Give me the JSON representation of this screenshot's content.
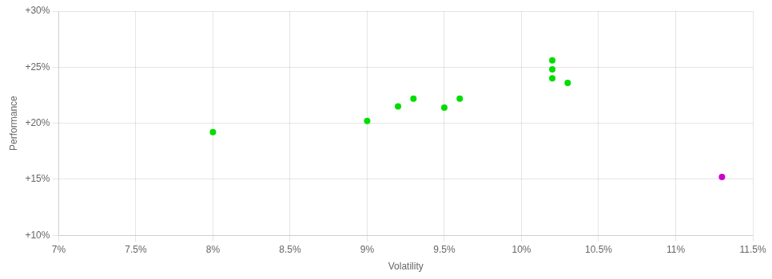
{
  "chart_data": {
    "type": "scatter",
    "xlabel": "Volatility",
    "ylabel": "Performance",
    "xlim": [
      0.07,
      0.115
    ],
    "ylim": [
      0.1,
      0.3
    ],
    "xticks": [
      {
        "value": 0.07,
        "label": "7%"
      },
      {
        "value": 0.075,
        "label": "7.5%"
      },
      {
        "value": 0.08,
        "label": "8%"
      },
      {
        "value": 0.085,
        "label": "8.5%"
      },
      {
        "value": 0.09,
        "label": "9%"
      },
      {
        "value": 0.095,
        "label": "9.5%"
      },
      {
        "value": 0.1,
        "label": "10%"
      },
      {
        "value": 0.105,
        "label": "10.5%"
      },
      {
        "value": 0.11,
        "label": "11%"
      },
      {
        "value": 0.115,
        "label": "11.5%"
      }
    ],
    "yticks": [
      {
        "value": 0.1,
        "label": "+10%"
      },
      {
        "value": 0.15,
        "label": "+15%"
      },
      {
        "value": 0.2,
        "label": "+20%"
      },
      {
        "value": 0.25,
        "label": "+25%"
      },
      {
        "value": 0.3,
        "label": "+30%"
      }
    ],
    "grid": true,
    "series": [
      {
        "color": "#00dd00",
        "x": [
          0.08,
          0.09,
          0.092,
          0.093,
          0.095,
          0.096,
          0.102,
          0.102,
          0.102,
          0.103
        ],
        "values": [
          0.192,
          0.202,
          0.215,
          0.222,
          0.214,
          0.222,
          0.256,
          0.248,
          0.24,
          0.236
        ]
      },
      {
        "color": "#cc00cc",
        "x": [
          0.113
        ],
        "values": [
          0.152
        ]
      }
    ]
  }
}
